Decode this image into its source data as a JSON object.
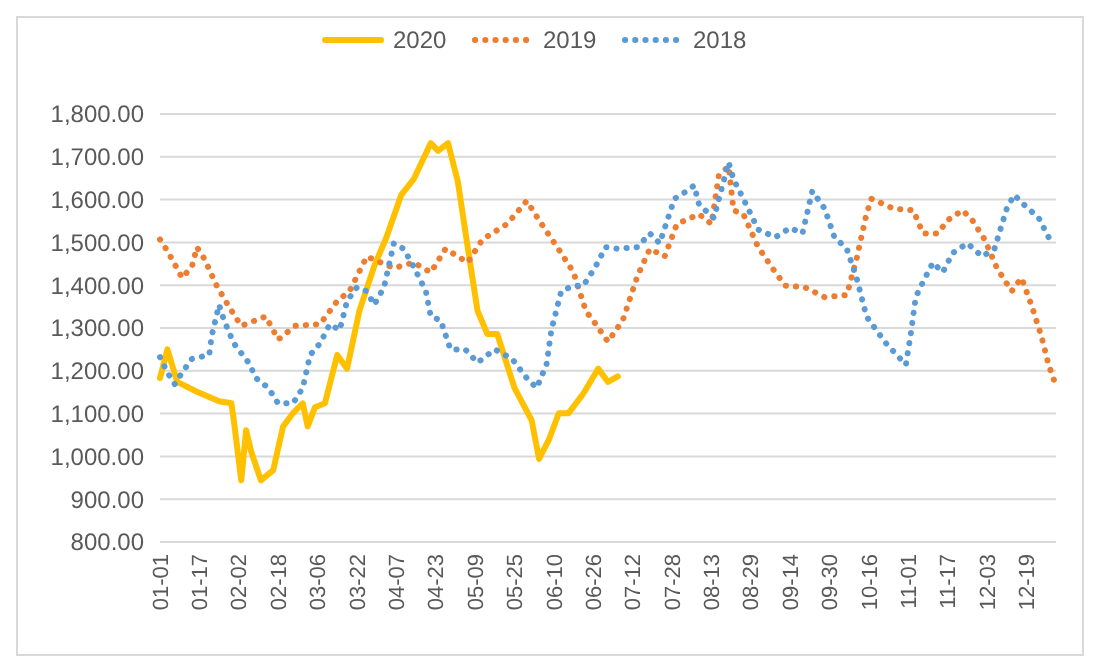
{
  "chart_data": {
    "type": "line",
    "legend": "top",
    "grid": "y",
    "marker": "none",
    "xlim": [
      "--01-01",
      "--12-31"
    ],
    "xticks": [
      {
        "value": "--01-01",
        "label": "01-01"
      },
      {
        "value": "--01-17",
        "label": "01-17"
      },
      {
        "value": "--02-02",
        "label": "02-02"
      },
      {
        "value": "--02-18",
        "label": "02-18"
      },
      {
        "value": "--03-06",
        "label": "03-06"
      },
      {
        "value": "--03-22",
        "label": "03-22"
      },
      {
        "value": "--04-07",
        "label": "04-07"
      },
      {
        "value": "--04-23",
        "label": "04-23"
      },
      {
        "value": "--05-09",
        "label": "05-09"
      },
      {
        "value": "--05-25",
        "label": "05-25"
      },
      {
        "value": "--06-10",
        "label": "06-10"
      },
      {
        "value": "--06-26",
        "label": "06-26"
      },
      {
        "value": "--07-12",
        "label": "07-12"
      },
      {
        "value": "--07-28",
        "label": "07-28"
      },
      {
        "value": "--08-13",
        "label": "08-13"
      },
      {
        "value": "--08-29",
        "label": "08-29"
      },
      {
        "value": "--09-14",
        "label": "09-14"
      },
      {
        "value": "--09-30",
        "label": "09-30"
      },
      {
        "value": "--10-16",
        "label": "10-16"
      },
      {
        "value": "--11-01",
        "label": "11-01"
      },
      {
        "value": "--11-17",
        "label": "11-17"
      },
      {
        "value": "--12-03",
        "label": "12-03"
      },
      {
        "value": "--12-19",
        "label": "12-19"
      }
    ],
    "ylim": [
      800,
      1800
    ],
    "yticks": [
      {
        "value": 800,
        "label": "800.00"
      },
      {
        "value": 900,
        "label": "900.00"
      },
      {
        "value": 1000,
        "label": "1,000.00"
      },
      {
        "value": 1100,
        "label": "1,100.00"
      },
      {
        "value": 1200,
        "label": "1,200.00"
      },
      {
        "value": 1300,
        "label": "1,300.00"
      },
      {
        "value": 1400,
        "label": "1,400.00"
      },
      {
        "value": 1500,
        "label": "1,500.00"
      },
      {
        "value": 1600,
        "label": "1,600.00"
      },
      {
        "value": 1700,
        "label": "1,700.00"
      },
      {
        "value": 1800,
        "label": "1,800.00"
      }
    ],
    "series": [
      {
        "name": "2020",
        "color": "#ffc000",
        "line_style": "solid",
        "x": [
          "--01-01",
          "--01-04",
          "--01-08",
          "--01-16",
          "--01-25",
          "--01-30",
          "--01-31",
          "--02-03",
          "--02-05",
          "--02-07",
          "--02-11",
          "--02-16",
          "--02-20",
          "--02-24",
          "--02-28",
          "--03-02",
          "--03-05",
          "--03-09",
          "--03-14",
          "--03-18",
          "--03-23",
          "--03-29",
          "--04-03",
          "--04-09",
          "--04-14",
          "--04-21",
          "--04-24",
          "--04-28",
          "--05-02",
          "--05-06",
          "--05-10",
          "--05-14",
          "--05-18",
          "--05-25",
          "--06-01",
          "--06-04",
          "--06-08",
          "--06-12",
          "--06-16",
          "--06-22",
          "--06-28",
          "--07-02",
          "--07-06"
        ],
        "values": [
          1183,
          1250,
          1174,
          1151,
          1129,
          1124,
          1084,
          944,
          1061,
          1012,
          944,
          968,
          1070,
          1101,
          1124,
          1070,
          1115,
          1124,
          1237,
          1205,
          1340,
          1444,
          1512,
          1611,
          1647,
          1732,
          1714,
          1732,
          1642,
          1489,
          1340,
          1286,
          1286,
          1160,
          1084,
          994,
          1039,
          1101,
          1101,
          1147,
          1205,
          1174,
          1187
        ]
      },
      {
        "name": "2019",
        "color": "#ed7d31",
        "line_style": "dotted",
        "x": [
          "--01-01",
          "--01-04",
          "--01-07",
          "--01-10",
          "--01-14",
          "--01-16",
          "--01-19",
          "--01-24",
          "--01-29",
          "--02-03",
          "--02-13",
          "--02-18",
          "--02-25",
          "--03-07",
          "--03-14",
          "--03-19",
          "--03-26",
          "--04-06",
          "--04-14",
          "--04-21",
          "--04-27",
          "--05-06",
          "--05-12",
          "--05-22",
          "--05-30",
          "--06-05",
          "--06-13",
          "--06-18",
          "--06-23",
          "--06-27",
          "--07-02",
          "--07-08",
          "--07-14",
          "--07-19",
          "--07-25",
          "--07-30",
          "--08-08",
          "--08-13",
          "--08-16",
          "--08-20",
          "--08-22",
          "--08-26",
          "--09-01",
          "--09-08",
          "--09-12",
          "--09-20",
          "--09-28",
          "--10-07",
          "--10-11",
          "--10-15",
          "--10-17",
          "--10-26",
          "--11-03",
          "--11-07",
          "--11-13",
          "--11-17",
          "--11-23",
          "--11-27",
          "--12-02",
          "--12-07",
          "--12-13",
          "--12-17",
          "--12-21",
          "--12-25",
          "--12-28",
          "--12-31"
        ],
        "values": [
          1507,
          1480,
          1449,
          1417,
          1444,
          1489,
          1462,
          1399,
          1350,
          1305,
          1327,
          1273,
          1305,
          1309,
          1363,
          1386,
          1467,
          1440,
          1453,
          1430,
          1485,
          1453,
          1507,
          1543,
          1597,
          1543,
          1475,
          1430,
          1340,
          1309,
          1268,
          1318,
          1422,
          1485,
          1467,
          1543,
          1566,
          1543,
          1656,
          1678,
          1575,
          1566,
          1489,
          1430,
          1399,
          1395,
          1372,
          1377,
          1462,
          1566,
          1602,
          1579,
          1575,
          1521,
          1521,
          1552,
          1575,
          1552,
          1507,
          1440,
          1386,
          1417,
          1354,
          1282,
          1214,
          1165
        ]
      },
      {
        "name": "2018",
        "color": "#5b9bd5",
        "line_style": "dotted",
        "x": [
          "--01-01",
          "--01-04",
          "--01-07",
          "--01-10",
          "--01-14",
          "--01-21",
          "--01-22",
          "--01-25",
          "--01-27",
          "--01-31",
          "--02-06",
          "--02-09",
          "--02-14",
          "--02-18",
          "--02-24",
          "--02-28",
          "--03-03",
          "--03-07",
          "--03-11",
          "--03-15",
          "--03-18",
          "--03-22",
          "--03-26",
          "--03-29",
          "--04-02",
          "--04-06",
          "--04-10",
          "--04-14",
          "--04-19",
          "--04-21",
          "--04-25",
          "--04-29",
          "--05-05",
          "--05-10",
          "--05-17",
          "--05-24",
          "--05-30",
          "--06-03",
          "--06-07",
          "--06-09",
          "--06-13",
          "--06-18",
          "--06-22",
          "--06-27",
          "--07-01",
          "--07-06",
          "--07-14",
          "--07-19",
          "--07-23",
          "--07-29",
          "--08-03",
          "--08-06",
          "--08-08",
          "--08-14",
          "--08-20",
          "--08-22",
          "--08-26",
          "--09-01",
          "--09-08",
          "--09-14",
          "--09-19",
          "--09-23",
          "--09-28",
          "--10-02",
          "--10-07",
          "--10-11",
          "--10-15",
          "--10-19",
          "--10-23",
          "--10-31",
          "--11-02",
          "--11-04",
          "--11-07",
          "--11-11",
          "--11-15",
          "--11-19",
          "--11-25",
          "--12-01",
          "--12-06",
          "--12-11",
          "--12-14",
          "--12-18",
          "--12-24",
          "--12-28",
          "--12-31"
        ],
        "values": [
          1232,
          1196,
          1169,
          1196,
          1228,
          1237,
          1282,
          1354,
          1318,
          1264,
          1219,
          1183,
          1160,
          1124,
          1124,
          1160,
          1237,
          1264,
          1309,
          1295,
          1363,
          1395,
          1386,
          1354,
          1395,
          1498,
          1485,
          1444,
          1386,
          1327,
          1318,
          1250,
          1250,
          1219,
          1250,
          1228,
          1183,
          1160,
          1214,
          1295,
          1386,
          1399,
          1399,
          1444,
          1489,
          1485,
          1489,
          1521,
          1498,
          1602,
          1620,
          1633,
          1588,
          1557,
          1687,
          1647,
          1602,
          1530,
          1512,
          1534,
          1521,
          1620,
          1579,
          1512,
          1485,
          1417,
          1327,
          1295,
          1264,
          1214,
          1286,
          1372,
          1408,
          1453,
          1430,
          1475,
          1498,
          1467,
          1485,
          1579,
          1611,
          1588,
          1557,
          1512,
          1498
        ]
      }
    ]
  }
}
